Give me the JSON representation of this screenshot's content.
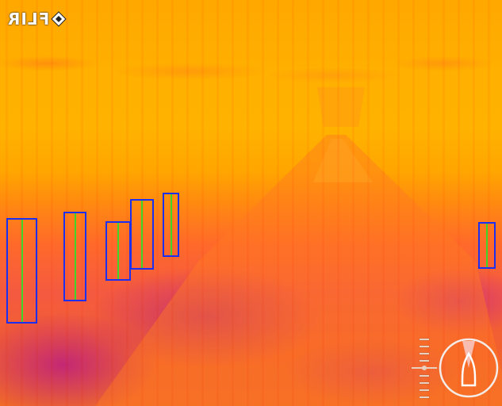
{
  "overlay": {
    "logo_text": "FLIR",
    "logo_icon": "flir-diamond-logo-icon",
    "box_color": "#1a2ff0",
    "centerline_color": "#3fd62a",
    "detection_count": 7,
    "compass_icon": "boat-heading-compass-icon",
    "scale_icon": "elevation-scale-icon"
  }
}
